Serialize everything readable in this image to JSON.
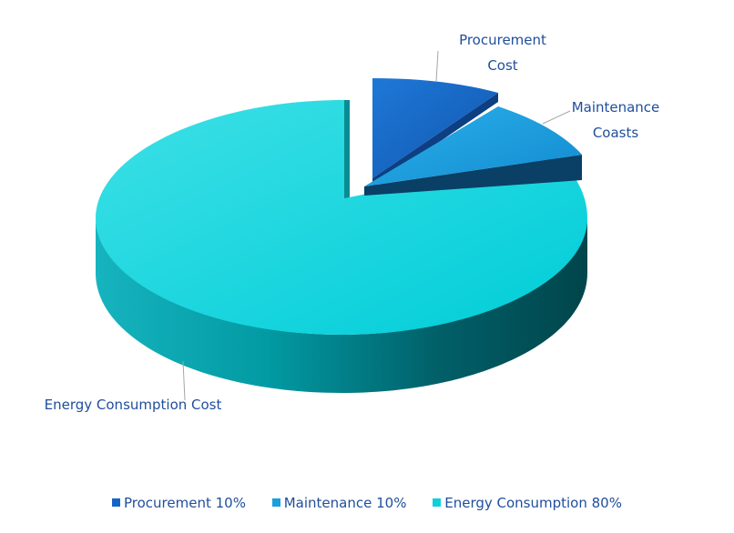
{
  "chart_data": {
    "type": "pie",
    "variant": "3d-exploded",
    "slices": [
      {
        "name": "Procurement Cost",
        "label_lines": [
          "Procurement",
          "Cost"
        ],
        "legend": "Procurement 10%",
        "value": 10,
        "color": "#1565c8",
        "side_color": "#0e4180"
      },
      {
        "name": "Maintenance Coasts",
        "label_lines": [
          "Maintenance",
          "Coasts"
        ],
        "legend": "Maintenance 10%",
        "value": 10,
        "color": "#1a9ee0",
        "side_color": "#0a4f6b"
      },
      {
        "name": "Energy Consumption Cost",
        "label_lines": [
          "Energy Consumption Cost"
        ],
        "legend": "Energy Consumption 80%",
        "value": 80,
        "color": "#0dd0dc",
        "side_color": "#02888f"
      }
    ],
    "legend_position": "bottom"
  }
}
